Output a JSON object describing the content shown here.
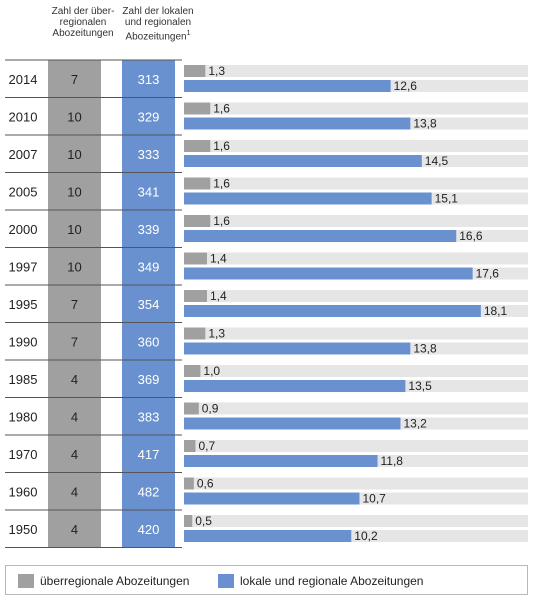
{
  "headers": {
    "col_ueber": "Zahl der über-regionalen Abozeitungen",
    "col_lokal": "Zahl der lokalen und regionalen Abozeitungen",
    "col_lokal_footnote": "1"
  },
  "colors": {
    "ueberregional": "#a0a0a0",
    "lokal": "#6a91cf",
    "row_bg": "#e6e6e6",
    "row_line": "#555555"
  },
  "legend": {
    "ueberregional": "überregionale Abozeitungen",
    "lokal": "lokale und regionale Abozeitungen"
  },
  "chart_data": {
    "type": "bar",
    "categories": [
      "2014",
      "2010",
      "2007",
      "2005",
      "2000",
      "1997",
      "1995",
      "1990",
      "1985",
      "1980",
      "1970",
      "1960",
      "1950"
    ],
    "count_ueberregional": [
      7,
      10,
      10,
      10,
      10,
      10,
      7,
      7,
      4,
      4,
      4,
      4,
      4
    ],
    "count_lokal": [
      313,
      329,
      333,
      341,
      339,
      349,
      354,
      360,
      369,
      383,
      417,
      482,
      420
    ],
    "series": [
      {
        "name": "überregionale Abozeitungen",
        "values": [
          1.3,
          1.6,
          1.6,
          1.6,
          1.6,
          1.4,
          1.4,
          1.3,
          1.0,
          0.9,
          0.7,
          0.6,
          0.5
        ]
      },
      {
        "name": "lokale und regionale Abozeitungen",
        "values": [
          12.6,
          13.8,
          14.5,
          15.1,
          16.6,
          17.6,
          18.1,
          13.8,
          13.5,
          13.2,
          11.8,
          10.7,
          10.2
        ]
      }
    ],
    "value_labels": {
      "ueberregional": [
        "1,3",
        "1,6",
        "1,6",
        "1,6",
        "1,6",
        "1,4",
        "1,4",
        "1,3",
        "1,0",
        "0,9",
        "0,7",
        "0,6",
        "0,5"
      ],
      "lokal": [
        "12,6",
        "13,8",
        "14,5",
        "15,1",
        "16,6",
        "17,6",
        "18,1",
        "13,8",
        "13,5",
        "13,2",
        "11,8",
        "10,7",
        "10,2"
      ]
    },
    "xlim": [
      0,
      22
    ],
    "legend_position": "bottom"
  }
}
